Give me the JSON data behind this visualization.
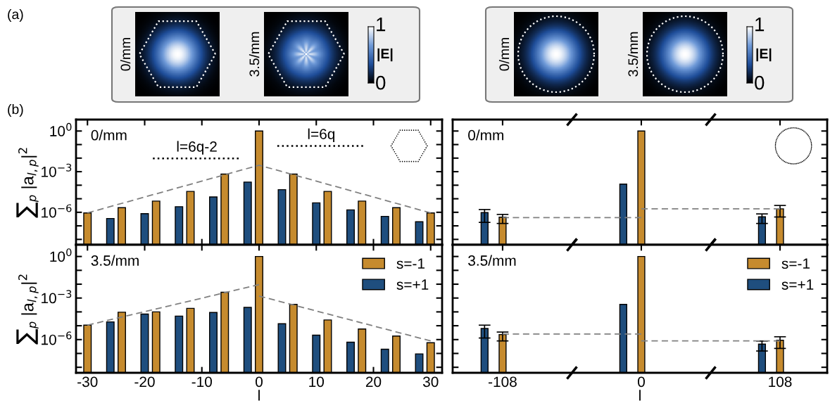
{
  "chart_data": [
    {
      "type": "other",
      "annotations": [
        "(a)",
        "0/mm",
        "3.5/mm",
        "1",
        "|E|",
        "0",
        "0/mm",
        "3.5/mm",
        "1",
        "|E|",
        "0"
      ]
    },
    {
      "type": "bar",
      "title": "0/mm",
      "ylabel": "∑$_{p}$ |a$_{l,p}$|$^{2}$",
      "log": true,
      "tick_labels": "y",
      "annotations": [
        "(b)",
        "l=6q-2",
        "l=6q"
      ],
      "xlim": [
        -32,
        32
      ],
      "xticks": [
        -30,
        -20,
        -10,
        0,
        10,
        20,
        30
      ],
      "ylim": [
        4e-09,
        7
      ],
      "yticks": [
        {
          "value": 1,
          "label": "10$^{0}$"
        },
        {
          "value": 0.1,
          "label": null
        },
        {
          "value": 0.01,
          "label": null
        },
        {
          "value": 0.001,
          "label": "10$^{−3}$"
        },
        {
          "value": 0.0001,
          "label": null
        },
        {
          "value": 1e-05,
          "label": null
        },
        {
          "value": 1e-06,
          "label": "10$^{−6}$"
        },
        {
          "value": 1e-07,
          "label": null
        },
        {
          "value": 1e-08,
          "label": null
        }
      ],
      "series": [
        {
          "color": "#c68b2e",
          "x": [
            -30,
            -24,
            -18,
            -12,
            -6,
            0,
            6,
            12,
            18,
            24,
            30
          ],
          "values": [
            9e-07,
            2.2e-06,
            6.7e-06,
            3.5e-05,
            0.00066,
            1,
            0.00066,
            3.5e-05,
            6.7e-06,
            2.2e-06,
            9e-07
          ]
        },
        {
          "color": "#1f4e7e",
          "x": [
            -26,
            -20,
            -14,
            -8,
            -2,
            4,
            10,
            16,
            22,
            28
          ],
          "values": [
            3.5e-07,
            8e-07,
            2.6e-06,
            1.35e-05,
            0.00017,
            4.7e-05,
            5e-06,
            1.5e-06,
            5e-07,
            2e-07
          ]
        },
        {
          "type": "line",
          "color": "#808080",
          "line_style": "dashed",
          "x": [
            -30,
            0,
            30
          ],
          "values": [
            9e-07,
            0.003,
            9e-07
          ]
        }
      ]
    },
    {
      "type": "bar",
      "title": "0/mm",
      "log": true,
      "tick_labels": false,
      "categories": [
        "-108",
        "0",
        "108"
      ],
      "ylim": [
        4e-09,
        7
      ],
      "yticks": [
        1,
        0.1,
        0.01,
        0.001,
        0.0001,
        1e-05,
        1e-06,
        1e-07,
        1e-08
      ],
      "series": [
        {
          "color": "#c68b2e",
          "values": [
            4.4e-07,
            1,
            1.8e-06
          ],
          "errors": [
            [
              1.5e-07,
              7e-07
            ],
            null,
            [
              4.5e-07,
              3.2e-06
            ]
          ]
        },
        {
          "color": "#1f4e7e",
          "values": [
            9.5e-07,
            0.00012,
            4.6e-07
          ],
          "errors": [
            [
              1.8e-07,
              1.6e-06
            ],
            null,
            [
              1.5e-07,
              7.6e-07
            ]
          ]
        },
        {
          "type": "line",
          "color": "#808080",
          "line_style": "dashed",
          "x": [
            "-108",
            "0"
          ],
          "values": [
            4.1e-07,
            4.1e-07
          ]
        },
        {
          "type": "line",
          "color": "#808080",
          "line_style": "dashed",
          "x": [
            "0",
            "108"
          ],
          "values": [
            1.8e-06,
            1.8e-06
          ]
        }
      ]
    },
    {
      "type": "bar",
      "title": "3.5/mm",
      "ylabel": "∑$_{p}$ |a$_{l,p}$|$^{2}$",
      "xlabel": "l",
      "log": true,
      "legend": "top right",
      "xlim": [
        -32,
        32
      ],
      "xticks": [
        -30,
        -20,
        -10,
        0,
        10,
        20,
        30
      ],
      "ylim": [
        4e-09,
        7
      ],
      "yticks": [
        {
          "value": 1,
          "label": "10$^{0}$"
        },
        {
          "value": 0.1,
          "label": null
        },
        {
          "value": 0.01,
          "label": null
        },
        {
          "value": 0.001,
          "label": "10$^{−3}$"
        },
        {
          "value": 0.0001,
          "label": null
        },
        {
          "value": 1e-05,
          "label": null
        },
        {
          "value": 1e-06,
          "label": "10$^{−6}$"
        },
        {
          "value": 1e-07,
          "label": null
        },
        {
          "value": 1e-08,
          "label": null
        }
      ],
      "series": [
        {
          "name": "s=-1",
          "color": "#c68b2e",
          "x": [
            -30,
            -24,
            -18,
            -12,
            -6,
            0,
            6,
            12,
            18,
            24,
            30
          ],
          "values": [
            1.1e-05,
            9.5e-05,
            0.0001,
            0.00018,
            0.0026,
            1,
            0.00035,
            2.6e-05,
            5.8e-06,
            1.8e-06,
            5.9e-07
          ]
        },
        {
          "name": "s=+1",
          "color": "#1f4e7e",
          "x": [
            -26,
            -20,
            -14,
            -8,
            -2,
            4,
            10,
            16,
            22,
            28
          ],
          "values": [
            1.9e-05,
            7e-05,
            5e-05,
            9e-05,
            0.00021,
            1.4e-05,
            2.1e-06,
            6.5e-07,
            2e-07,
            9.3e-08
          ]
        },
        {
          "type": "line",
          "color": "#808080",
          "line_style": "dashed",
          "x": [
            -30,
            0
          ],
          "values": [
            1.1e-05,
            0.0093
          ]
        },
        {
          "type": "line",
          "color": "#808080",
          "line_style": "dashed",
          "x": [
            0,
            30
          ],
          "values": [
            0.0014,
            8e-07
          ]
        }
      ]
    },
    {
      "type": "bar",
      "title": "3.5/mm",
      "xlabel": "l",
      "log": true,
      "tick_labels": "x",
      "legend": "top right",
      "categories": [
        "-108",
        "0",
        "108"
      ],
      "ylim": [
        4e-09,
        7
      ],
      "yticks": [
        1,
        0.1,
        0.01,
        0.001,
        0.0001,
        1e-05,
        1e-06,
        1e-07,
        1e-08
      ],
      "series": [
        {
          "name": "s=-1",
          "color": "#c68b2e",
          "values": [
            2.3e-06,
            1,
            8.9e-07
          ],
          "errors": [
            [
              8e-07,
              3.5e-06
            ],
            null,
            [
              2.3e-07,
              1.6e-06
            ]
          ]
        },
        {
          "name": "s=+1",
          "color": "#1f4e7e",
          "values": [
            6.3e-06,
            0.00035,
            4.7e-07
          ],
          "errors": [
            [
              1.3e-06,
              1.1e-05
            ],
            null,
            [
              1.5e-07,
              7.8e-07
            ]
          ]
        },
        {
          "type": "line",
          "color": "#808080",
          "line_style": "dashed",
          "x": [
            "-108",
            "0"
          ],
          "values": [
            2.5e-06,
            2.5e-06
          ]
        },
        {
          "type": "line",
          "color": "#808080",
          "line_style": "dashed",
          "x": [
            "0",
            "108"
          ],
          "values": [
            8e-07,
            8e-07
          ]
        }
      ]
    }
  ]
}
